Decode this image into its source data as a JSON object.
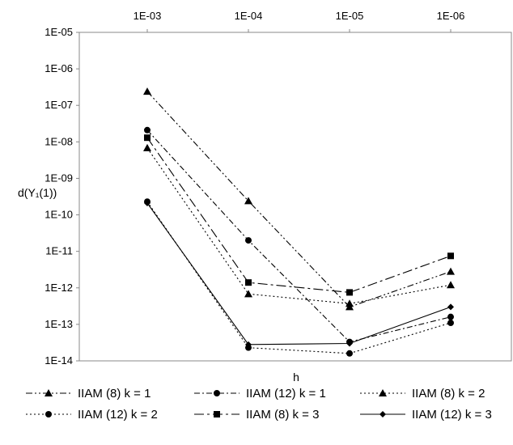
{
  "chart_data": {
    "type": "line",
    "xlabel": "h",
    "ylabel": "d(Y₁(1))",
    "x": [
      "1E-03",
      "1E-04",
      "1E-05",
      "1E-06"
    ],
    "y_scale": "log",
    "ylim": [
      1e-14,
      1e-05
    ],
    "y_ticks": [
      "1E-05",
      "1E-06",
      "1E-07",
      "1E-08",
      "1E-09",
      "1E-10",
      "1E-11",
      "1E-12",
      "1E-13",
      "1E-14"
    ],
    "x_axis_position": "top",
    "grid": false,
    "legend_position": "bottom",
    "series": [
      {
        "name": "IIAM (8) k = 1",
        "marker": "triangle",
        "dash": "dash-dot-dot",
        "values": [
          2.4e-07,
          2.4e-10,
          3e-13,
          2.8e-12
        ]
      },
      {
        "name": "IIAM (12) k = 1",
        "marker": "circle",
        "dash": "dash-dot",
        "values": [
          2.1e-08,
          2e-11,
          3.3e-14,
          1.6e-13
        ]
      },
      {
        "name": "IIAM (8) k = 2",
        "marker": "triangle",
        "dash": "dotted",
        "values": [
          6.8e-09,
          6.8e-13,
          3.7e-13,
          1.2e-12
        ]
      },
      {
        "name": "IIAM (12) k = 2",
        "marker": "circle",
        "dash": "dotted",
        "values": [
          2.3e-10,
          2.3e-14,
          1.6e-14,
          1.1e-13
        ]
      },
      {
        "name": "IIAM (8) k = 3",
        "marker": "square",
        "dash": "long-dash-dot",
        "values": [
          1.3e-08,
          1.4e-12,
          7.5e-13,
          7.5e-12
        ]
      },
      {
        "name": "IIAM (12) k = 3",
        "marker": "diamond",
        "dash": "solid",
        "values": [
          2.1e-10,
          2.8e-14,
          3e-14,
          3e-13
        ]
      }
    ]
  }
}
